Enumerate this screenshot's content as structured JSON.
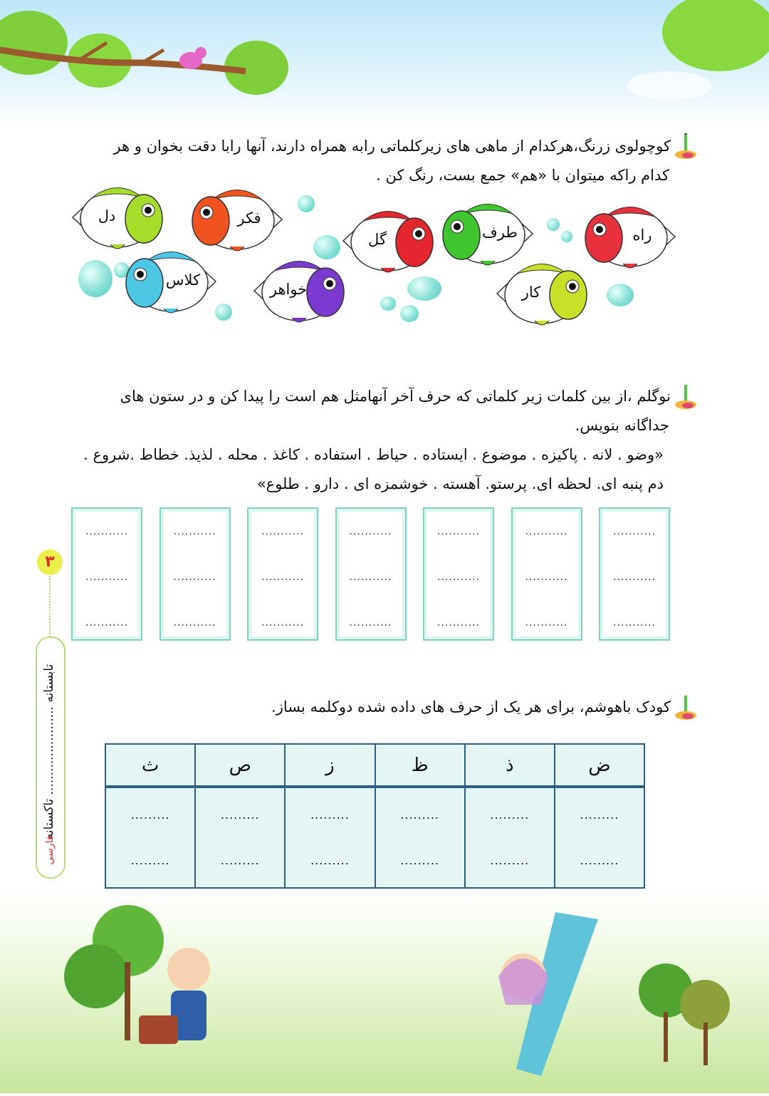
{
  "exercise1": {
    "instruction_line1": "کوچولوی زرنگ،هرکدام از ماهی های زیرکلماتی رابه همراه دارند، آنها رابا دقت بخوان و هر",
    "instruction_line2": "کدام راکه میتوان با «هم» جمع بست، رنگ کن .",
    "fish": [
      {
        "word": "راه",
        "color": "#e8303f",
        "faces": "left"
      },
      {
        "word": "طرف",
        "color": "#3fc62e",
        "faces": "left"
      },
      {
        "word": "گل",
        "color": "#e5262f",
        "faces": "right"
      },
      {
        "word": "فکر",
        "color": "#f0531f",
        "faces": "left"
      },
      {
        "word": "دل",
        "color": "#a6dd2a",
        "faces": "right"
      },
      {
        "word": "کار",
        "color": "#c8e028",
        "faces": "right"
      },
      {
        "word": "خواهر",
        "color": "#7a3ad0",
        "faces": "right"
      },
      {
        "word": "کلاس",
        "color": "#4ec6e6",
        "faces": "left"
      }
    ]
  },
  "exercise2": {
    "instruction_line1": "نوگلم ،از بین کلمات زیر کلماتی که حرف آخر آنهامثل هم است را پیدا کن و در ستون های",
    "instruction_line2": "جداگانه بنویس.",
    "words_line1": "«وضو . لانه . پاکیزه . موضوع . ایستاده . حیاط . استفاده . کاغذ . محله . لذیذ. خطاط .شروع .",
    "words_line2": "دم پنبه ای. لحظه ای. پرستو. آهسته . خوشمزه ای . دارو . طلوع»",
    "blank": "...........",
    "column_count": 7
  },
  "exercise3": {
    "instruction": "کودک باهوشم، برای هر یک از حرف های داده شده دوکلمه بساز.",
    "letters": [
      "ض",
      "ذ",
      "ظ",
      "ز",
      "ص",
      "ث"
    ],
    "blank": "........."
  },
  "sidebar": {
    "page_number": "۳",
    "label": "تابستانه ....................... تاکستانه",
    "subject": "فارسی"
  }
}
